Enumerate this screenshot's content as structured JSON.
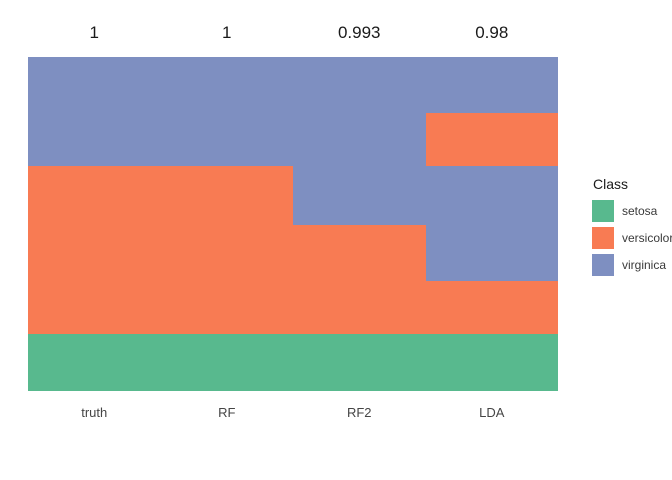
{
  "colors": {
    "setosa": "#58B98E",
    "versicolor": "#F87B53",
    "virginica": "#7E8FC1",
    "background": "#FFFFFF",
    "score_text": "#1A1A1A",
    "axis_text": "#454545",
    "legend_text": "#3A3A3A"
  },
  "legend": {
    "title": "Class",
    "items": [
      {
        "class": "setosa",
        "label": "setosa"
      },
      {
        "class": "versicolor",
        "label": "versicolor"
      },
      {
        "class": "virginica",
        "label": "virginica"
      }
    ]
  },
  "chart_data": {
    "type": "heatmap",
    "subtype": "stacked-class-tiles",
    "x_categories": [
      "truth",
      "RF",
      "RF2",
      "LDA"
    ],
    "top_scores": [
      "1",
      "1",
      "0.993",
      "0.98"
    ],
    "fill_legend_title": "Class",
    "fill_classes": [
      "setosa",
      "versicolor",
      "virginica"
    ],
    "grid": false,
    "axis_lines": false,
    "legend_position": "right",
    "columns": [
      {
        "label": "truth",
        "score": "1",
        "segments": [
          {
            "class": "virginica",
            "fraction": 0.325
          },
          {
            "class": "versicolor",
            "fraction": 0.503
          },
          {
            "class": "setosa",
            "fraction": 0.172
          }
        ]
      },
      {
        "label": "RF",
        "score": "1",
        "segments": [
          {
            "class": "virginica",
            "fraction": 0.325
          },
          {
            "class": "versicolor",
            "fraction": 0.503
          },
          {
            "class": "setosa",
            "fraction": 0.172
          }
        ]
      },
      {
        "label": "RF2",
        "score": "0.993",
        "segments": [
          {
            "class": "virginica",
            "fraction": 0.503
          },
          {
            "class": "versicolor",
            "fraction": 0.325
          },
          {
            "class": "setosa",
            "fraction": 0.172
          }
        ]
      },
      {
        "label": "LDA",
        "score": "0.98",
        "segments": [
          {
            "class": "virginica",
            "fraction": 0.168
          },
          {
            "class": "versicolor",
            "fraction": 0.157
          },
          {
            "class": "virginica",
            "fraction": 0.345
          },
          {
            "class": "versicolor",
            "fraction": 0.158
          },
          {
            "class": "setosa",
            "fraction": 0.172
          }
        ]
      }
    ]
  }
}
